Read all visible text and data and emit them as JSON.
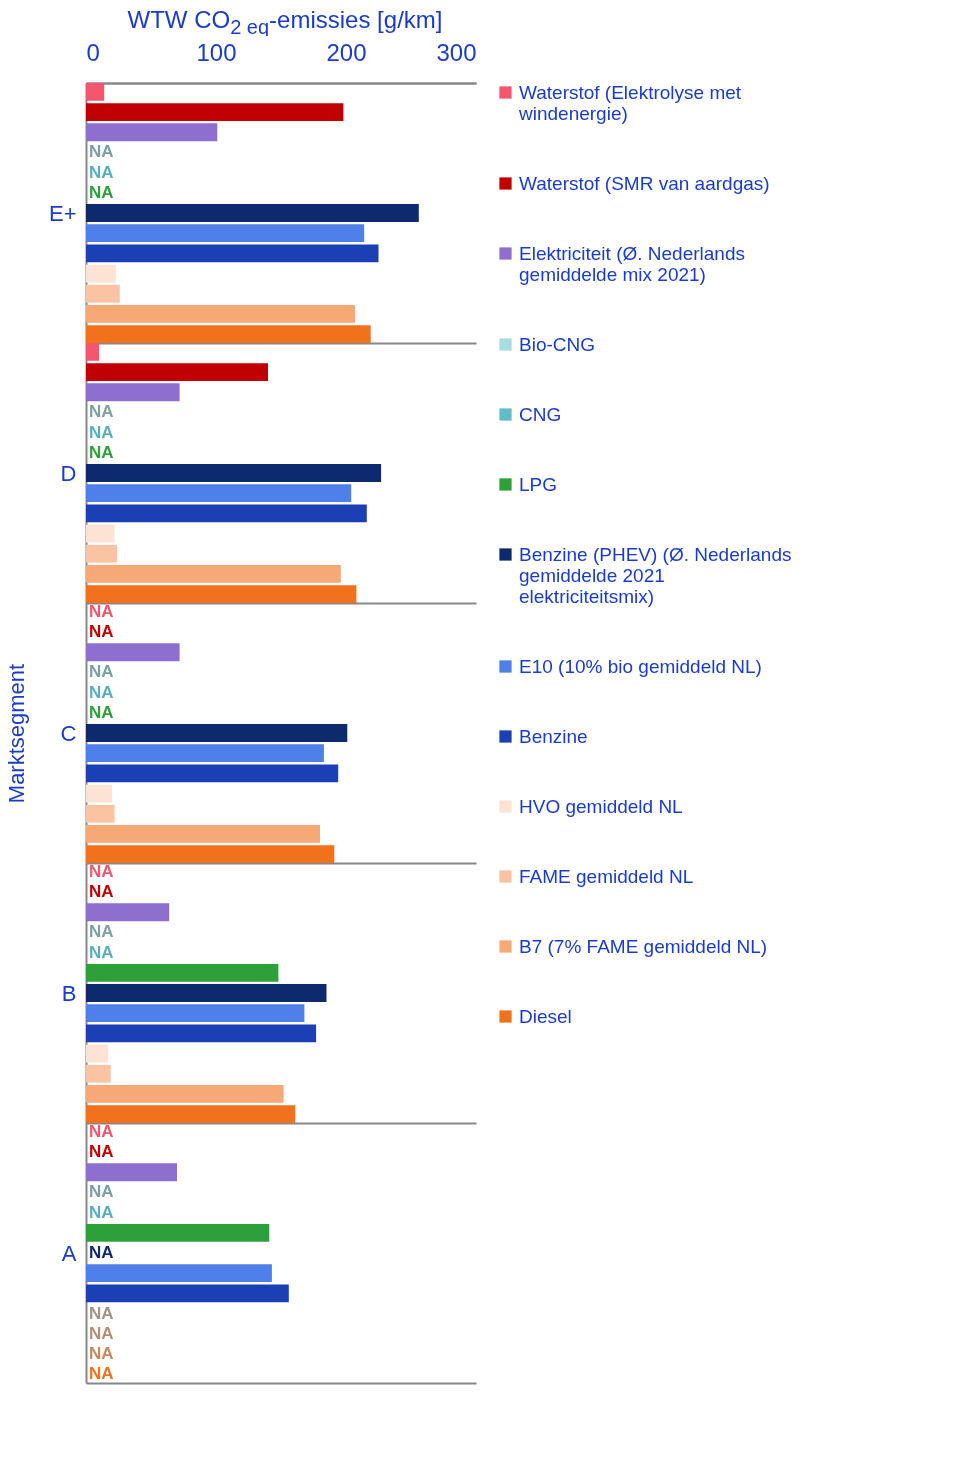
{
  "chart_data": {
    "type": "bar",
    "orientation": "horizontal",
    "xlabel": "WTW CO$_{2 eq}$-emissies [g/km]",
    "ylabel": "Marktsegment",
    "categories": [
      "E+",
      "D",
      "C",
      "B",
      "A"
    ],
    "xlim": [
      0,
      300
    ],
    "xticks": [
      0,
      100,
      200,
      300
    ],
    "grid": "y",
    "legend": "right",
    "series": [
      {
        "name": "Waterstof (Elektrolyse met windenergie)",
        "color": "#f4566e",
        "values": [
          14,
          10,
          null,
          null,
          null
        ],
        "value_labels": [
          null,
          null,
          "NA",
          "NA",
          "NA"
        ]
      },
      {
        "name": "Waterstof (SMR van aardgas)",
        "color": "#c00000",
        "values": [
          198,
          140,
          null,
          null,
          null
        ],
        "value_labels": [
          null,
          null,
          "NA",
          "NA",
          "NA"
        ]
      },
      {
        "name": "Elektriciteit (Ø. Nederlands gemiddelde mix 2021)",
        "color": "#8e6fcf",
        "values": [
          101,
          72,
          72,
          64,
          70
        ],
        "value_labels": [
          null,
          null,
          null,
          null,
          null
        ]
      },
      {
        "name": "Bio-CNG",
        "color": "#a7dce0",
        "values": [
          null,
          null,
          null,
          null,
          null
        ],
        "value_labels": [
          "NA",
          "NA",
          "NA",
          "NA",
          "NA"
        ]
      },
      {
        "name": "CNG",
        "color": "#5fbcc8",
        "values": [
          null,
          null,
          null,
          null,
          null
        ],
        "value_labels": [
          "NA",
          "NA",
          "NA",
          "NA",
          "NA"
        ]
      },
      {
        "name": "LPG",
        "color": "#2ea03a",
        "values": [
          null,
          null,
          null,
          148,
          141
        ],
        "value_labels": [
          "NA",
          "NA",
          "NA",
          null,
          null
        ]
      },
      {
        "name": "Benzine (PHEV)  (Ø. Nederlands gemiddelde 2021 elektriciteitsmix)",
        "color": "#0e2a6e",
        "values": [
          256,
          227,
          201,
          185,
          null
        ],
        "value_labels": [
          null,
          null,
          null,
          null,
          "NA"
        ]
      },
      {
        "name": "E10 (10% bio gemiddeld NL)",
        "color": "#4f7fe8",
        "values": [
          214,
          204,
          183,
          168,
          143
        ],
        "value_labels": [
          null,
          null,
          null,
          null,
          null
        ]
      },
      {
        "name": "Benzine",
        "color": "#1b3fb4",
        "values": [
          225,
          216,
          194,
          177,
          156
        ],
        "value_labels": [
          null,
          null,
          null,
          null,
          null
        ]
      },
      {
        "name": "HVO gemiddeld NL",
        "color": "#fde3d3",
        "values": [
          23,
          22,
          20,
          17,
          null
        ],
        "value_labels": [
          null,
          null,
          null,
          null,
          "NA"
        ]
      },
      {
        "name": "FAME gemiddeld NL",
        "color": "#fac4a2",
        "values": [
          26,
          24,
          22,
          19,
          null
        ],
        "value_labels": [
          null,
          null,
          null,
          null,
          "NA"
        ]
      },
      {
        "name": "B7 (7% FAME gemiddeld NL)",
        "color": "#f6a876",
        "values": [
          207,
          196,
          180,
          152,
          null
        ],
        "value_labels": [
          null,
          null,
          null,
          null,
          "NA"
        ]
      },
      {
        "name": "Diesel",
        "color": "#f2711c",
        "values": [
          219,
          208,
          191,
          161,
          null
        ],
        "value_labels": [
          null,
          null,
          null,
          null,
          "NA"
        ]
      }
    ]
  }
}
